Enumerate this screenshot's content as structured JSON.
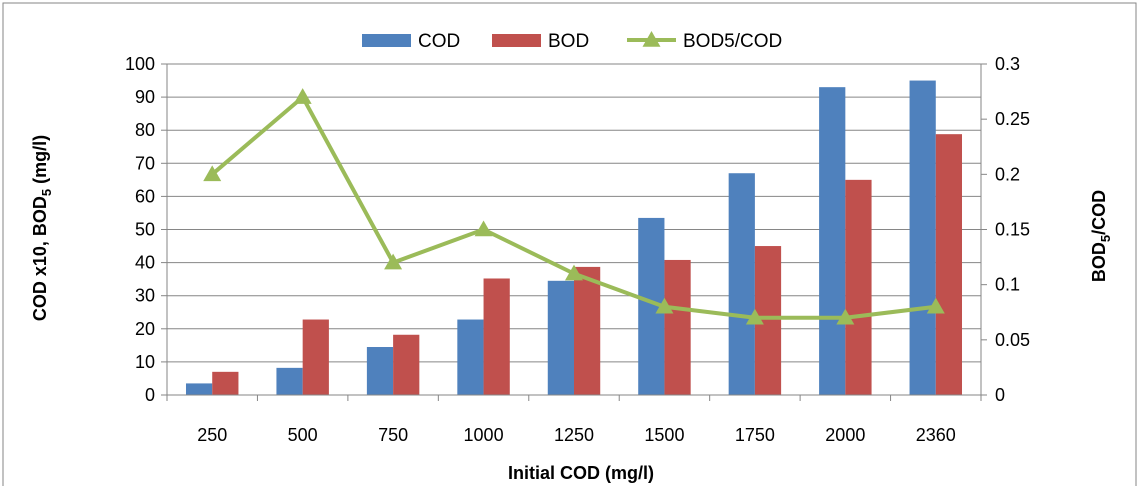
{
  "colors": {
    "cod": "#4f81bd",
    "bod": "#c0504d",
    "ratio": "#9bbb59",
    "grid": "#868686",
    "frame": "#868686"
  },
  "chart_data": {
    "type": "bar",
    "categories": [
      "250",
      "500",
      "750",
      "1000",
      "1250",
      "1500",
      "1750",
      "2000",
      "2360"
    ],
    "series": [
      {
        "name": "COD",
        "type": "bar",
        "axis": "left",
        "values": [
          3.5,
          8.2,
          14.5,
          22.8,
          34.5,
          53.5,
          67,
          93,
          95
        ]
      },
      {
        "name": "BOD",
        "type": "bar",
        "axis": "left",
        "values": [
          7,
          22.8,
          18.2,
          35.2,
          38.7,
          40.8,
          45,
          65,
          78.8
        ]
      },
      {
        "name": "BOD5/COD",
        "type": "line",
        "marker": "triangle",
        "axis": "right",
        "values": [
          0.2,
          0.27,
          0.12,
          0.15,
          0.11,
          0.08,
          0.07,
          0.07,
          0.08
        ]
      }
    ],
    "xlabel": "Initial COD (mg/l)",
    "ylabel": {
      "main": "COD x10, BOD",
      "sub": "5",
      "suffix": " (mg/l)"
    },
    "y2label": {
      "main": "BOD",
      "sub": "5",
      "suffix": "/COD"
    },
    "ylim": [
      0,
      100
    ],
    "y_ticks": [
      "0",
      "10",
      "20",
      "30",
      "40",
      "50",
      "60",
      "70",
      "80",
      "90",
      "100"
    ],
    "y2lim": [
      0,
      0.3
    ],
    "y2_ticks": [
      "0",
      "0.05",
      "0.1",
      "0.15",
      "0.2",
      "0.25",
      "0.3"
    ],
    "grid": true,
    "legend_position": "top-center"
  }
}
